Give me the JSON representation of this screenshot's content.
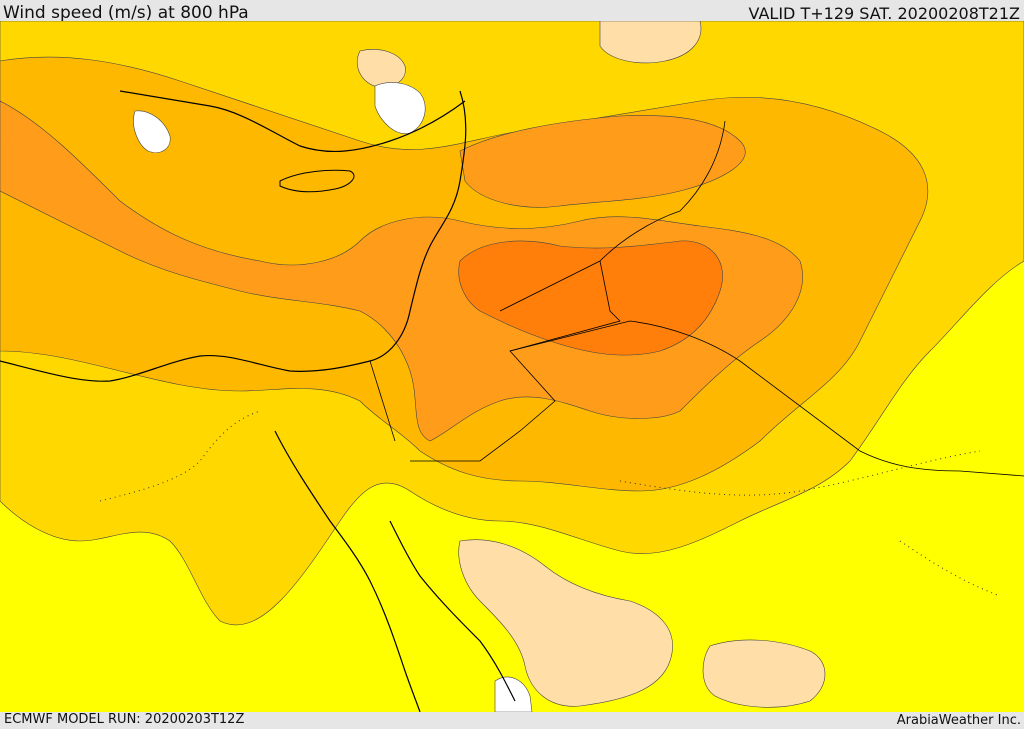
{
  "header": {
    "title": "Wind speed (m/s) at 800 hPa",
    "valid": "VALID T+129 SAT. 20200208T21Z"
  },
  "footer": {
    "model_run": "ECMWF MODEL RUN: 20200203T12Z",
    "credit": "ArabiaWeather Inc."
  },
  "map": {
    "parameter": "wind speed",
    "units": "m/s",
    "level": "800 hPa",
    "colors": {
      "band_lowest": "#ffdea8",
      "band_low": "#ffff00",
      "band_mid_low": "#ffd800",
      "band_mid": "#ffb800",
      "band_high": "#ff9d1a",
      "band_highest": "#ff7f0a",
      "calm": "#ffffff",
      "coastline": "#000000",
      "border": "#000000",
      "contour": "#444444"
    }
  }
}
